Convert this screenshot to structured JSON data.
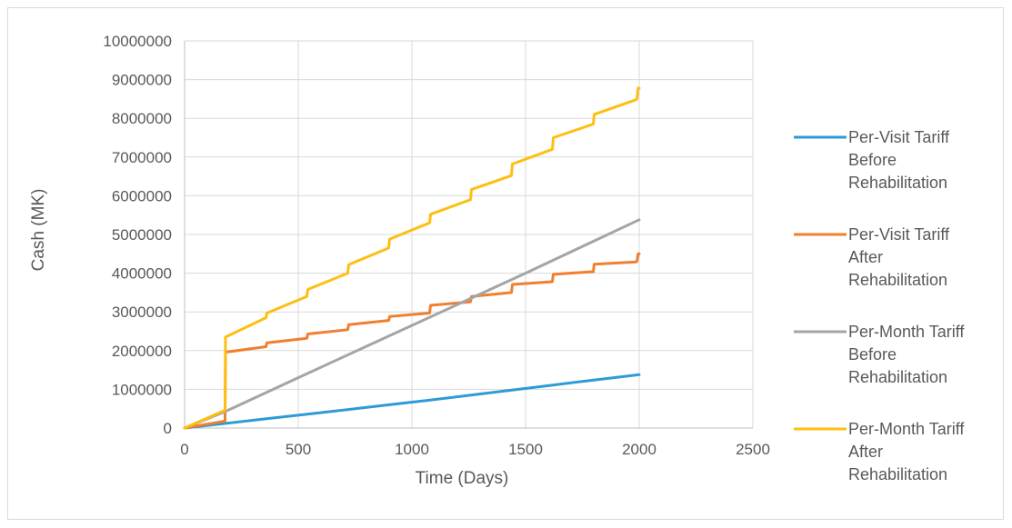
{
  "chart_data": {
    "type": "line",
    "title": "",
    "xlabel": "Time (Days)",
    "ylabel": "Cash (MK)",
    "xlim": [
      0,
      2500
    ],
    "ylim": [
      0,
      10000000
    ],
    "x_ticks": [
      "0",
      "500",
      "1000",
      "1500",
      "2000",
      "2500"
    ],
    "y_ticks": [
      "0",
      "1000000",
      "2000000",
      "3000000",
      "4000000",
      "5000000",
      "6000000",
      "7000000",
      "8000000",
      "9000000",
      "10000000"
    ],
    "grid": true,
    "legend_position": "right",
    "series": [
      {
        "name": "Per-Visit Tariff Before Rehabilitation",
        "legend_lines": [
          "Per-Visit Tariff",
          "Before",
          "Rehabilitation"
        ],
        "color": "#2e9bd6",
        "points": [
          [
            0,
            0
          ],
          [
            180,
            120000
          ],
          [
            360,
            240000
          ],
          [
            540,
            360000
          ],
          [
            720,
            480000
          ],
          [
            900,
            600000
          ],
          [
            1080,
            720000
          ],
          [
            1260,
            850000
          ],
          [
            1440,
            980000
          ],
          [
            1620,
            1110000
          ],
          [
            1800,
            1240000
          ],
          [
            2000,
            1380000
          ]
        ]
      },
      {
        "name": "Per-Visit Tariff After Rehabilitation",
        "legend_lines": [
          "Per-Visit Tariff",
          "After",
          "Rehabilitation"
        ],
        "color": "#f07f2e",
        "points": [
          [
            0,
            0
          ],
          [
            178,
            180000
          ],
          [
            180,
            1960000
          ],
          [
            358,
            2100000
          ],
          [
            362,
            2200000
          ],
          [
            538,
            2320000
          ],
          [
            542,
            2430000
          ],
          [
            718,
            2540000
          ],
          [
            722,
            2670000
          ],
          [
            898,
            2780000
          ],
          [
            902,
            2880000
          ],
          [
            1078,
            2970000
          ],
          [
            1082,
            3170000
          ],
          [
            1258,
            3260000
          ],
          [
            1262,
            3400000
          ],
          [
            1438,
            3500000
          ],
          [
            1442,
            3710000
          ],
          [
            1618,
            3780000
          ],
          [
            1622,
            3970000
          ],
          [
            1798,
            4040000
          ],
          [
            1802,
            4230000
          ],
          [
            1985,
            4290000
          ],
          [
            1990,
            4300000
          ],
          [
            1995,
            4500000
          ],
          [
            2000,
            4500000
          ]
        ]
      },
      {
        "name": "Per-Month Tariff Before Rehabilitation",
        "legend_lines": [
          "Per-Month Tariff",
          "Before",
          "Rehabilitation"
        ],
        "color": "#a5a5a5",
        "points": [
          [
            0,
            0
          ],
          [
            180,
            430000
          ],
          [
            500,
            1300000
          ],
          [
            1000,
            2650000
          ],
          [
            1500,
            4000000
          ],
          [
            2000,
            5380000
          ]
        ]
      },
      {
        "name": "Per-Month Tariff After Rehabilitation",
        "legend_lines": [
          "Per-Month Tariff",
          "After",
          "Rehabilitation"
        ],
        "color": "#fdbf12",
        "points": [
          [
            0,
            0
          ],
          [
            178,
            460000
          ],
          [
            180,
            2350000
          ],
          [
            358,
            2850000
          ],
          [
            362,
            2970000
          ],
          [
            538,
            3400000
          ],
          [
            542,
            3580000
          ],
          [
            718,
            4000000
          ],
          [
            722,
            4220000
          ],
          [
            898,
            4650000
          ],
          [
            902,
            4880000
          ],
          [
            1078,
            5300000
          ],
          [
            1082,
            5520000
          ],
          [
            1258,
            5900000
          ],
          [
            1262,
            6160000
          ],
          [
            1438,
            6520000
          ],
          [
            1442,
            6820000
          ],
          [
            1618,
            7200000
          ],
          [
            1622,
            7500000
          ],
          [
            1798,
            7850000
          ],
          [
            1802,
            8100000
          ],
          [
            1985,
            8480000
          ],
          [
            1990,
            8500000
          ],
          [
            1995,
            8780000
          ],
          [
            2000,
            8780000
          ]
        ]
      }
    ]
  }
}
